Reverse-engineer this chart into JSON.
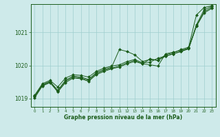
{
  "background_color": "#ceeaea",
  "grid_color": "#9ecece",
  "line_color": "#1a5c1a",
  "marker_color": "#1a5c1a",
  "xlabel": "Graphe pression niveau de la mer (hPa)",
  "ylim": [
    1018.75,
    1021.85
  ],
  "xlim": [
    -0.5,
    23.5
  ],
  "yticks": [
    1019,
    1020,
    1021
  ],
  "xtick_labels": [
    "0",
    "1",
    "2",
    "3",
    "4",
    "5",
    "6",
    "7",
    "8",
    "9",
    "10",
    "11",
    "12",
    "13",
    "14",
    "15",
    "16",
    "17",
    "18",
    "19",
    "20",
    "21",
    "22",
    "23"
  ],
  "series": [
    [
      1019.1,
      1019.45,
      1019.55,
      1019.35,
      1019.62,
      1019.72,
      1019.7,
      1019.65,
      1019.82,
      1019.92,
      1019.98,
      1020.02,
      1020.12,
      1020.18,
      1020.08,
      1020.1,
      1020.22,
      1020.28,
      1020.35,
      1020.42,
      1020.52,
      1021.18,
      1021.62,
      1021.75
    ],
    [
      1019.08,
      1019.42,
      1019.52,
      1019.25,
      1019.55,
      1019.68,
      1019.65,
      1019.58,
      1019.78,
      1019.88,
      1019.95,
      1020.48,
      1020.42,
      1020.32,
      1020.12,
      1020.18,
      1020.15,
      1020.32,
      1020.38,
      1020.48,
      1020.55,
      1021.52,
      1021.75,
      1021.8
    ],
    [
      1019.05,
      1019.4,
      1019.5,
      1019.22,
      1019.52,
      1019.65,
      1019.62,
      1019.55,
      1019.75,
      1019.85,
      1019.92,
      1019.98,
      1020.08,
      1020.15,
      1020.05,
      1020.02,
      1019.98,
      1020.35,
      1020.4,
      1020.45,
      1020.52,
      1021.22,
      1021.68,
      1021.78
    ],
    [
      1019.02,
      1019.38,
      1019.48,
      1019.2,
      1019.48,
      1019.62,
      1019.6,
      1019.52,
      1019.72,
      1019.82,
      1019.9,
      1019.95,
      1020.05,
      1020.12,
      1020.05,
      1020.2,
      1020.15,
      1020.28,
      1020.35,
      1020.42,
      1020.5,
      1021.18,
      1021.58,
      1021.72
    ]
  ]
}
